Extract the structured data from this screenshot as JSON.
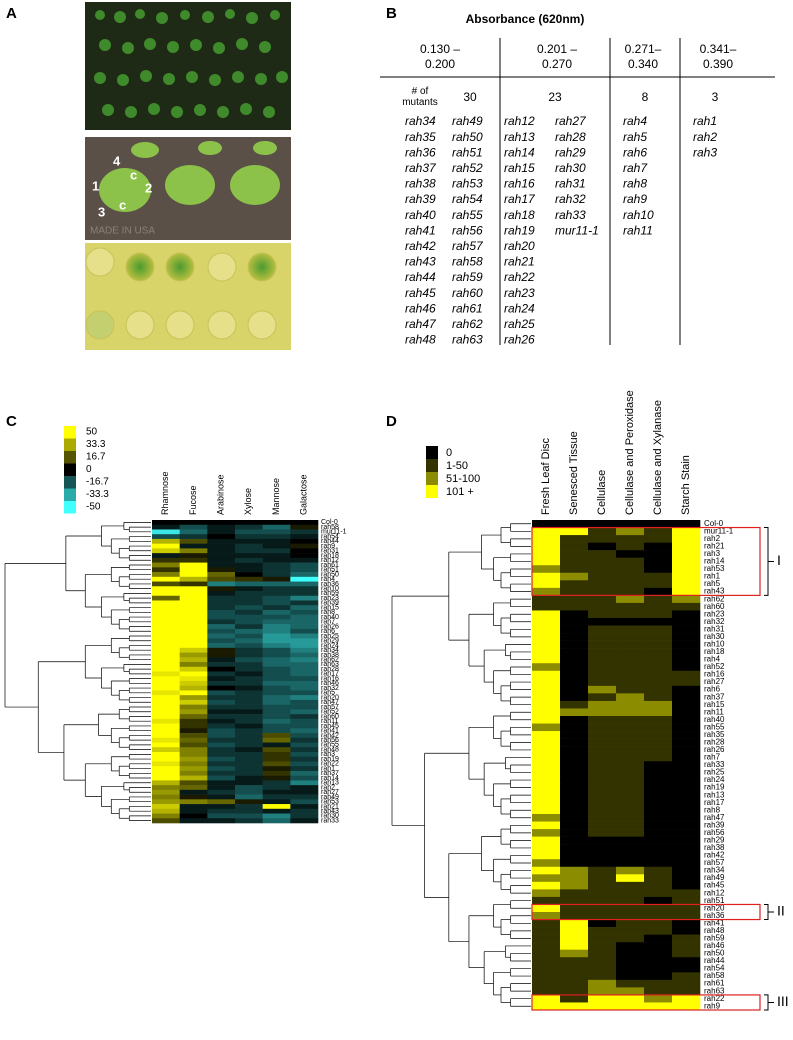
{
  "panel_labels": [
    "A",
    "B",
    "C",
    "D"
  ],
  "panel_a": {
    "plate_labels": [
      "4",
      "1",
      "c",
      "2",
      "c",
      "3"
    ],
    "tray_text": "MADE IN USA"
  },
  "panel_b": {
    "title": "Absorbance (620nm)",
    "ranges": [
      "0.130 – 0.200",
      "0.201 – 0.270",
      "0.271– 0.340",
      "0.341– 0.390"
    ],
    "count_label": "# of mutants",
    "counts": [
      30,
      23,
      8,
      3
    ],
    "mutants": [
      [
        [
          "rah34",
          "rah35",
          "rah36",
          "rah37",
          "rah38",
          "rah39",
          "rah40",
          "rah41",
          "rah42",
          "rah43",
          "rah44",
          "rah45",
          "rah46",
          "rah47",
          "rah48"
        ],
        [
          "rah49",
          "rah50",
          "rah51",
          "rah52",
          "rah53",
          "rah54",
          "rah55",
          "rah56",
          "rah57",
          "rah58",
          "rah59",
          "rah60",
          "rah61",
          "rah62",
          "rah63"
        ]
      ],
      [
        [
          "rah12",
          "rah13",
          "rah14",
          "rah15",
          "rah16",
          "rah17",
          "rah18",
          "rah19",
          "rah20",
          "rah21",
          "rah22",
          "rah23",
          "rah24",
          "rah25",
          "rah26"
        ],
        [
          "rah27",
          "rah28",
          "rah29",
          "rah30",
          "rah31",
          "rah32",
          "rah33",
          "mur11-1"
        ]
      ],
      [
        [
          "rah4",
          "rah5",
          "rah6",
          "rah7",
          "rah8",
          "rah9",
          "rah10",
          "rah11"
        ]
      ],
      [
        [
          "rah1",
          "rah2",
          "rah3"
        ]
      ]
    ]
  },
  "panel_c": {
    "type": "heatmap",
    "legend": [
      50,
      33.3,
      16.7,
      0,
      -16.7,
      -33.3,
      -50
    ],
    "high_color": "#ffff00",
    "low_color": "#40ffff",
    "zero_color": "#000000",
    "columns": [
      "Rhamnose",
      "Fucose",
      "Arabinose",
      "Xylose",
      "Mannose",
      "Galactose"
    ],
    "rows": [
      "Col-0",
      "rah58",
      "mur11-1",
      "rah54",
      "rah44",
      "rah9",
      "rah31",
      "rah18",
      "rah12",
      "rah61",
      "rah51",
      "rah50",
      "rah4",
      "rah36",
      "rah10",
      "rah59",
      "rah23",
      "rah39",
      "rah15",
      "rah8",
      "rah40",
      "rah7",
      "rah26",
      "rah6",
      "rah25",
      "rah29",
      "rah24",
      "rah34",
      "rah38",
      "rah62",
      "rah63",
      "rah28",
      "rah17",
      "rah16",
      "rah46",
      "rah32",
      "rah5",
      "rah20",
      "rah47",
      "rah57",
      "rah52",
      "rah60",
      "rah11",
      "rah45",
      "rah41",
      "rah42",
      "rah56",
      "rah55",
      "rah48",
      "rah3",
      "rah19",
      "rah22",
      "rah1",
      "rah37",
      "rah14",
      "rah13",
      "rah2",
      "rah27",
      "rah49",
      "rah53",
      "rah21",
      "rah43",
      "rah30",
      "rah33"
    ],
    "values": [
      [
        0,
        0,
        0,
        0,
        0,
        0
      ],
      [
        -5,
        -15,
        -5,
        -10,
        -20,
        5
      ],
      [
        -45,
        -20,
        -5,
        -15,
        -15,
        -10
      ],
      [
        -15,
        -10,
        0,
        -10,
        -10,
        -5
      ],
      [
        35,
        15,
        -5,
        -5,
        -5,
        0
      ],
      [
        50,
        -5,
        -5,
        -10,
        -5,
        5
      ],
      [
        40,
        25,
        -5,
        -10,
        -10,
        0
      ],
      [
        -5,
        5,
        -5,
        -5,
        -5,
        0
      ],
      [
        10,
        10,
        -5,
        -10,
        -5,
        -5
      ],
      [
        25,
        50,
        -5,
        -5,
        -10,
        -15
      ],
      [
        10,
        50,
        5,
        -5,
        -10,
        -15
      ],
      [
        25,
        50,
        20,
        0,
        -10,
        -20
      ],
      [
        50,
        35,
        15,
        10,
        5,
        -50
      ],
      [
        15,
        10,
        -25,
        -20,
        -20,
        -20
      ],
      [
        50,
        50,
        5,
        -5,
        -10,
        -10
      ],
      [
        50,
        50,
        -5,
        -10,
        -10,
        -10
      ],
      [
        20,
        50,
        -10,
        -10,
        -15,
        -25
      ],
      [
        50,
        50,
        -10,
        -10,
        -15,
        -10
      ],
      [
        50,
        50,
        -10,
        -15,
        -10,
        -20
      ],
      [
        50,
        50,
        -15,
        -10,
        -20,
        -15
      ],
      [
        50,
        50,
        -15,
        -15,
        -15,
        -20
      ],
      [
        50,
        50,
        -10,
        -15,
        -20,
        -20
      ],
      [
        50,
        50,
        -20,
        -10,
        -25,
        -20
      ],
      [
        50,
        50,
        -15,
        -20,
        -25,
        -15
      ],
      [
        50,
        50,
        -20,
        -15,
        -30,
        -25
      ],
      [
        50,
        50,
        -15,
        -20,
        -30,
        -30
      ],
      [
        50,
        50,
        -20,
        -15,
        -25,
        -30
      ],
      [
        50,
        40,
        5,
        -10,
        -15,
        -25
      ],
      [
        50,
        30,
        5,
        -10,
        -15,
        -20
      ],
      [
        50,
        35,
        -5,
        -15,
        -20,
        -25
      ],
      [
        50,
        25,
        -10,
        -10,
        -20,
        -20
      ],
      [
        50,
        40,
        0,
        -10,
        -15,
        -20
      ],
      [
        45,
        50,
        -10,
        -5,
        -15,
        -20
      ],
      [
        50,
        45,
        -5,
        -10,
        -15,
        -15
      ],
      [
        50,
        40,
        -10,
        -10,
        -20,
        -20
      ],
      [
        50,
        35,
        0,
        -5,
        -15,
        -20
      ],
      [
        45,
        50,
        -15,
        -10,
        -15,
        -15
      ],
      [
        50,
        30,
        -10,
        -10,
        -20,
        -25
      ],
      [
        50,
        40,
        -15,
        -10,
        -20,
        -15
      ],
      [
        50,
        25,
        -10,
        -10,
        -15,
        -15
      ],
      [
        50,
        30,
        -5,
        -5,
        -15,
        -20
      ],
      [
        50,
        20,
        -10,
        -10,
        -15,
        -10
      ],
      [
        45,
        10,
        -5,
        -10,
        -20,
        -15
      ],
      [
        50,
        10,
        -10,
        -5,
        -15,
        -15
      ],
      [
        50,
        5,
        -15,
        -10,
        -15,
        -20
      ],
      [
        50,
        15,
        -15,
        -10,
        15,
        -15
      ],
      [
        45,
        20,
        -10,
        -10,
        20,
        -10
      ],
      [
        50,
        15,
        -15,
        -10,
        -5,
        -15
      ],
      [
        40,
        25,
        -10,
        -5,
        15,
        -10
      ],
      [
        50,
        25,
        -10,
        -10,
        10,
        -15
      ],
      [
        50,
        30,
        -15,
        -10,
        10,
        -10
      ],
      [
        45,
        25,
        -10,
        -10,
        15,
        -15
      ],
      [
        50,
        30,
        -15,
        -10,
        5,
        -10
      ],
      [
        50,
        25,
        -10,
        -10,
        10,
        -20
      ],
      [
        50,
        35,
        -15,
        -5,
        5,
        -15
      ],
      [
        35,
        15,
        -5,
        -5,
        -10,
        -25
      ],
      [
        25,
        20,
        -5,
        -15,
        -10,
        -5
      ],
      [
        30,
        -5,
        -10,
        -15,
        -5,
        -5
      ],
      [
        25,
        5,
        -5,
        -20,
        -10,
        -10
      ],
      [
        30,
        25,
        20,
        5,
        -5,
        -15
      ],
      [
        40,
        -5,
        -5,
        -10,
        50,
        -5
      ],
      [
        35,
        -5,
        -10,
        -10,
        -5,
        -10
      ],
      [
        25,
        0,
        -15,
        -15,
        -25,
        -10
      ],
      [
        15,
        -5,
        -5,
        -10,
        -20,
        -5
      ]
    ]
  },
  "panel_d": {
    "type": "heatmap",
    "legend": [
      "0",
      "1-50",
      "51-100",
      "101 +"
    ],
    "colors": [
      "#000000",
      "#333300",
      "#8c8c00",
      "#ffff00"
    ],
    "columns": [
      "Fresh Leaf Disc",
      "Senesced Tissue",
      "Cellulase",
      "Cellulase and Peroxidase",
      "Cellulase and Xylanase",
      "Starch Stain"
    ],
    "clusters": [
      "I",
      "II",
      "III"
    ],
    "rows": [
      "Col-0",
      "mur11-1",
      "rah2",
      "rah21",
      "rah3",
      "rah14",
      "rah53",
      "rah1",
      "rah5",
      "rah43",
      "rah62",
      "rah60",
      "rah23",
      "rah32",
      "rah31",
      "rah30",
      "rah10",
      "rah18",
      "rah4",
      "rah52",
      "rah16",
      "rah27",
      "rah6",
      "rah37",
      "rah15",
      "rah11",
      "rah40",
      "rah55",
      "rah35",
      "rah28",
      "rah26",
      "rah7",
      "rah33",
      "rah25",
      "rah24",
      "rah19",
      "rah13",
      "rah17",
      "rah8",
      "rah47",
      "rah39",
      "rah56",
      "rah29",
      "rah38",
      "rah42",
      "rah57",
      "rah34",
      "rah49",
      "rah45",
      "rah12",
      "rah51",
      "rah20",
      "rah36",
      "rah41",
      "rah48",
      "rah59",
      "rah46",
      "rah50",
      "rah44",
      "rah54",
      "rah58",
      "rah61",
      "rah63",
      "rah22",
      "rah9"
    ],
    "values": [
      [
        0,
        0,
        0,
        0,
        0,
        0
      ],
      [
        3,
        3,
        1,
        2,
        1,
        3
      ],
      [
        3,
        1,
        1,
        1,
        1,
        3
      ],
      [
        3,
        1,
        0,
        1,
        0,
        3
      ],
      [
        3,
        1,
        1,
        0,
        0,
        3
      ],
      [
        3,
        1,
        1,
        1,
        0,
        3
      ],
      [
        2,
        1,
        1,
        1,
        0,
        3
      ],
      [
        3,
        2,
        1,
        1,
        1,
        3
      ],
      [
        3,
        1,
        1,
        1,
        1,
        3
      ],
      [
        2,
        1,
        1,
        1,
        0,
        3
      ],
      [
        1,
        1,
        1,
        2,
        1,
        2
      ],
      [
        1,
        1,
        1,
        1,
        1,
        1
      ],
      [
        3,
        0,
        1,
        1,
        1,
        0
      ],
      [
        3,
        0,
        0,
        0,
        0,
        0
      ],
      [
        3,
        0,
        1,
        1,
        1,
        0
      ],
      [
        3,
        0,
        1,
        1,
        1,
        0
      ],
      [
        3,
        0,
        1,
        1,
        1,
        0
      ],
      [
        3,
        0,
        1,
        1,
        1,
        0
      ],
      [
        3,
        0,
        1,
        1,
        1,
        0
      ],
      [
        2,
        0,
        1,
        1,
        1,
        0
      ],
      [
        3,
        0,
        1,
        1,
        1,
        1
      ],
      [
        3,
        0,
        1,
        1,
        1,
        1
      ],
      [
        3,
        0,
        2,
        1,
        1,
        0
      ],
      [
        3,
        0,
        1,
        2,
        1,
        0
      ],
      [
        3,
        1,
        2,
        2,
        2,
        0
      ],
      [
        3,
        2,
        2,
        2,
        2,
        0
      ],
      [
        3,
        0,
        1,
        1,
        1,
        0
      ],
      [
        2,
        0,
        1,
        1,
        1,
        0
      ],
      [
        3,
        0,
        1,
        1,
        1,
        0
      ],
      [
        3,
        0,
        1,
        1,
        1,
        0
      ],
      [
        3,
        0,
        1,
        1,
        1,
        0
      ],
      [
        3,
        0,
        1,
        1,
        1,
        0
      ],
      [
        3,
        0,
        1,
        1,
        0,
        0
      ],
      [
        3,
        0,
        1,
        1,
        0,
        0
      ],
      [
        3,
        0,
        1,
        1,
        0,
        0
      ],
      [
        3,
        0,
        1,
        1,
        0,
        0
      ],
      [
        3,
        0,
        1,
        1,
        0,
        0
      ],
      [
        3,
        0,
        1,
        1,
        0,
        0
      ],
      [
        3,
        0,
        1,
        1,
        0,
        0
      ],
      [
        2,
        0,
        1,
        1,
        0,
        0
      ],
      [
        3,
        0,
        1,
        1,
        0,
        0
      ],
      [
        2,
        0,
        1,
        1,
        0,
        0
      ],
      [
        3,
        0,
        0,
        0,
        0,
        0
      ],
      [
        3,
        0,
        0,
        0,
        0,
        0
      ],
      [
        3,
        0,
        0,
        0,
        0,
        0
      ],
      [
        2,
        0,
        0,
        0,
        0,
        0
      ],
      [
        3,
        2,
        1,
        2,
        1,
        0
      ],
      [
        2,
        2,
        1,
        3,
        1,
        0
      ],
      [
        3,
        2,
        1,
        1,
        1,
        0
      ],
      [
        2,
        1,
        1,
        1,
        1,
        1
      ],
      [
        1,
        1,
        1,
        1,
        0,
        1
      ],
      [
        3,
        1,
        1,
        1,
        1,
        1
      ],
      [
        2,
        1,
        1,
        1,
        1,
        1
      ],
      [
        1,
        3,
        0,
        1,
        1,
        0
      ],
      [
        1,
        3,
        1,
        1,
        1,
        0
      ],
      [
        1,
        3,
        1,
        1,
        0,
        1
      ],
      [
        1,
        3,
        1,
        0,
        0,
        1
      ],
      [
        1,
        2,
        1,
        0,
        0,
        1
      ],
      [
        1,
        1,
        1,
        0,
        0,
        0
      ],
      [
        1,
        1,
        1,
        0,
        0,
        0
      ],
      [
        1,
        1,
        1,
        0,
        0,
        1
      ],
      [
        1,
        1,
        2,
        1,
        1,
        1
      ],
      [
        1,
        1,
        2,
        2,
        1,
        1
      ],
      [
        3,
        1,
        3,
        3,
        2,
        3
      ],
      [
        3,
        3,
        3,
        3,
        3,
        3
      ]
    ]
  }
}
